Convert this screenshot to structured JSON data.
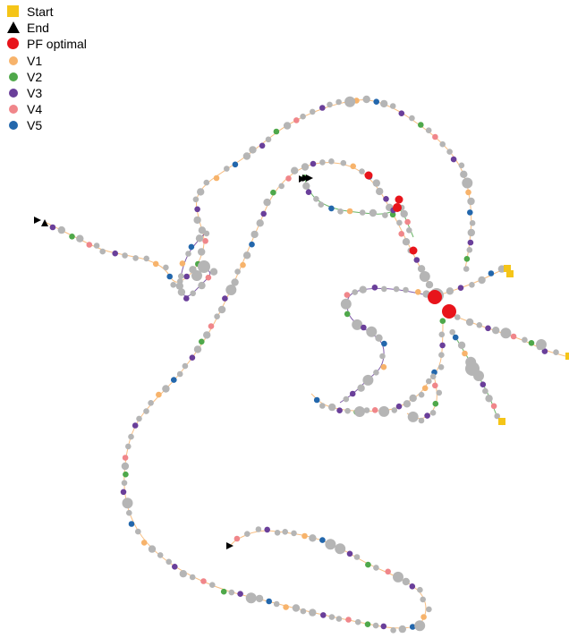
{
  "legend": [
    {
      "label": "Start",
      "shape": "square",
      "color": "#f5c518"
    },
    {
      "label": "End",
      "shape": "triangle",
      "color": "#000000"
    },
    {
      "label": "PF optimal",
      "shape": "dot-large",
      "color": "#e8141b"
    },
    {
      "label": "V1",
      "shape": "dot",
      "color": "#f7b36b"
    },
    {
      "label": "V2",
      "shape": "dot",
      "color": "#4fa84a"
    },
    {
      "label": "V3",
      "shape": "dot",
      "color": "#6a3f9a"
    },
    {
      "label": "V4",
      "shape": "dot",
      "color": "#f0868a"
    },
    {
      "label": "V5",
      "shape": "dot",
      "color": "#2367ac"
    }
  ],
  "colors": {
    "node": "#b5b5b5",
    "edge": "#f7b36b",
    "edge_alt_green": "#4fa84a",
    "edge_alt_purple": "#6a3f9a"
  }
}
